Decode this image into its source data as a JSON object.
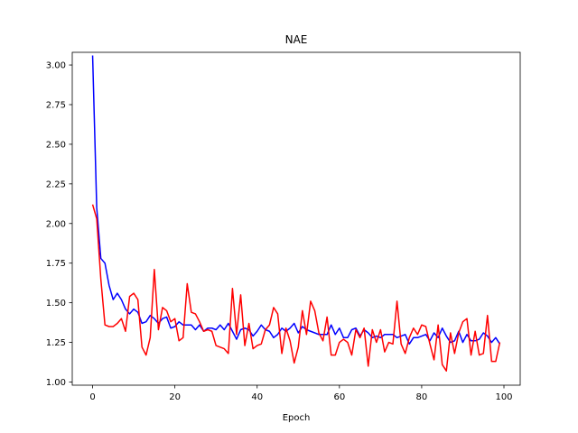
{
  "chart_data": {
    "type": "line",
    "title": "NAE",
    "xlabel": "Epoch",
    "ylabel": "",
    "xlim": [
      -4.95,
      103.95
    ],
    "ylim": [
      0.98,
      3.08
    ],
    "xticks": [
      0,
      20,
      40,
      60,
      80,
      100
    ],
    "yticks": [
      1.0,
      1.25,
      1.5,
      1.75,
      2.0,
      2.25,
      2.5,
      2.75,
      3.0
    ],
    "ytick_labels": [
      "1.00",
      "1.25",
      "1.50",
      "1.75",
      "2.00",
      "2.25",
      "2.50",
      "2.75",
      "3.00"
    ],
    "grid": false,
    "legend": "none",
    "x": [
      0,
      1,
      2,
      3,
      4,
      5,
      6,
      7,
      8,
      9,
      10,
      11,
      12,
      13,
      14,
      15,
      16,
      17,
      18,
      19,
      20,
      21,
      22,
      23,
      24,
      25,
      26,
      27,
      28,
      29,
      30,
      31,
      32,
      33,
      34,
      35,
      36,
      37,
      38,
      39,
      40,
      41,
      42,
      43,
      44,
      45,
      46,
      47,
      48,
      49,
      50,
      51,
      52,
      53,
      54,
      55,
      56,
      57,
      58,
      59,
      60,
      61,
      62,
      63,
      64,
      65,
      66,
      67,
      68,
      69,
      70,
      71,
      72,
      73,
      74,
      75,
      76,
      77,
      78,
      79,
      80,
      81,
      82,
      83,
      84,
      85,
      86,
      87,
      88,
      89,
      90,
      91,
      92,
      93,
      94,
      95,
      96,
      97,
      98,
      99
    ],
    "series": [
      {
        "color": "#0000ff",
        "values": [
          3.06,
          2.1,
          1.78,
          1.75,
          1.61,
          1.52,
          1.56,
          1.52,
          1.46,
          1.43,
          1.46,
          1.44,
          1.37,
          1.38,
          1.42,
          1.4,
          1.37,
          1.4,
          1.41,
          1.34,
          1.35,
          1.38,
          1.36,
          1.36,
          1.36,
          1.33,
          1.36,
          1.32,
          1.34,
          1.34,
          1.33,
          1.36,
          1.33,
          1.37,
          1.32,
          1.27,
          1.33,
          1.34,
          1.33,
          1.29,
          1.32,
          1.36,
          1.33,
          1.32,
          1.28,
          1.3,
          1.34,
          1.32,
          1.34,
          1.37,
          1.31,
          1.35,
          1.33,
          1.32,
          1.31,
          1.3,
          1.3,
          1.3,
          1.36,
          1.3,
          1.34,
          1.28,
          1.28,
          1.33,
          1.34,
          1.29,
          1.33,
          1.31,
          1.28,
          1.29,
          1.28,
          1.3,
          1.3,
          1.3,
          1.28,
          1.29,
          1.3,
          1.24,
          1.28,
          1.28,
          1.29,
          1.3,
          1.26,
          1.31,
          1.28,
          1.34,
          1.29,
          1.25,
          1.26,
          1.32,
          1.25,
          1.3,
          1.26,
          1.26,
          1.27,
          1.31,
          1.29,
          1.25,
          1.28,
          1.24
        ]
      },
      {
        "color": "#ff0000",
        "values": [
          2.12,
          2.03,
          1.65,
          1.36,
          1.35,
          1.35,
          1.37,
          1.4,
          1.32,
          1.54,
          1.56,
          1.52,
          1.22,
          1.17,
          1.28,
          1.71,
          1.33,
          1.47,
          1.45,
          1.38,
          1.4,
          1.26,
          1.28,
          1.62,
          1.44,
          1.43,
          1.38,
          1.32,
          1.33,
          1.32,
          1.23,
          1.22,
          1.21,
          1.18,
          1.59,
          1.3,
          1.55,
          1.23,
          1.37,
          1.21,
          1.23,
          1.24,
          1.33,
          1.36,
          1.47,
          1.43,
          1.18,
          1.34,
          1.26,
          1.12,
          1.22,
          1.45,
          1.3,
          1.51,
          1.45,
          1.31,
          1.26,
          1.41,
          1.17,
          1.17,
          1.25,
          1.27,
          1.25,
          1.17,
          1.33,
          1.28,
          1.34,
          1.1,
          1.33,
          1.25,
          1.33,
          1.19,
          1.25,
          1.24,
          1.51,
          1.24,
          1.18,
          1.28,
          1.34,
          1.3,
          1.36,
          1.35,
          1.24,
          1.14,
          1.36,
          1.11,
          1.07,
          1.31,
          1.18,
          1.31,
          1.38,
          1.4,
          1.17,
          1.32,
          1.17,
          1.18,
          1.42,
          1.13,
          1.13,
          1.25
        ]
      }
    ]
  }
}
